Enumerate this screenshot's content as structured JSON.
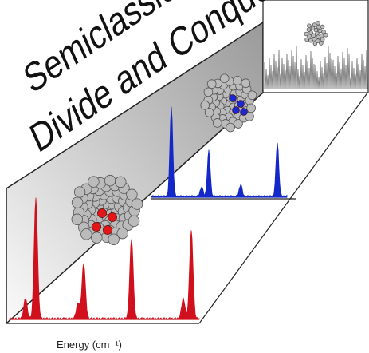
{
  "panel": {
    "line1": "Semiclassical",
    "line2": "Divide and Conquer"
  },
  "axis": {
    "label": "Energy (cm⁻¹)"
  }
}
